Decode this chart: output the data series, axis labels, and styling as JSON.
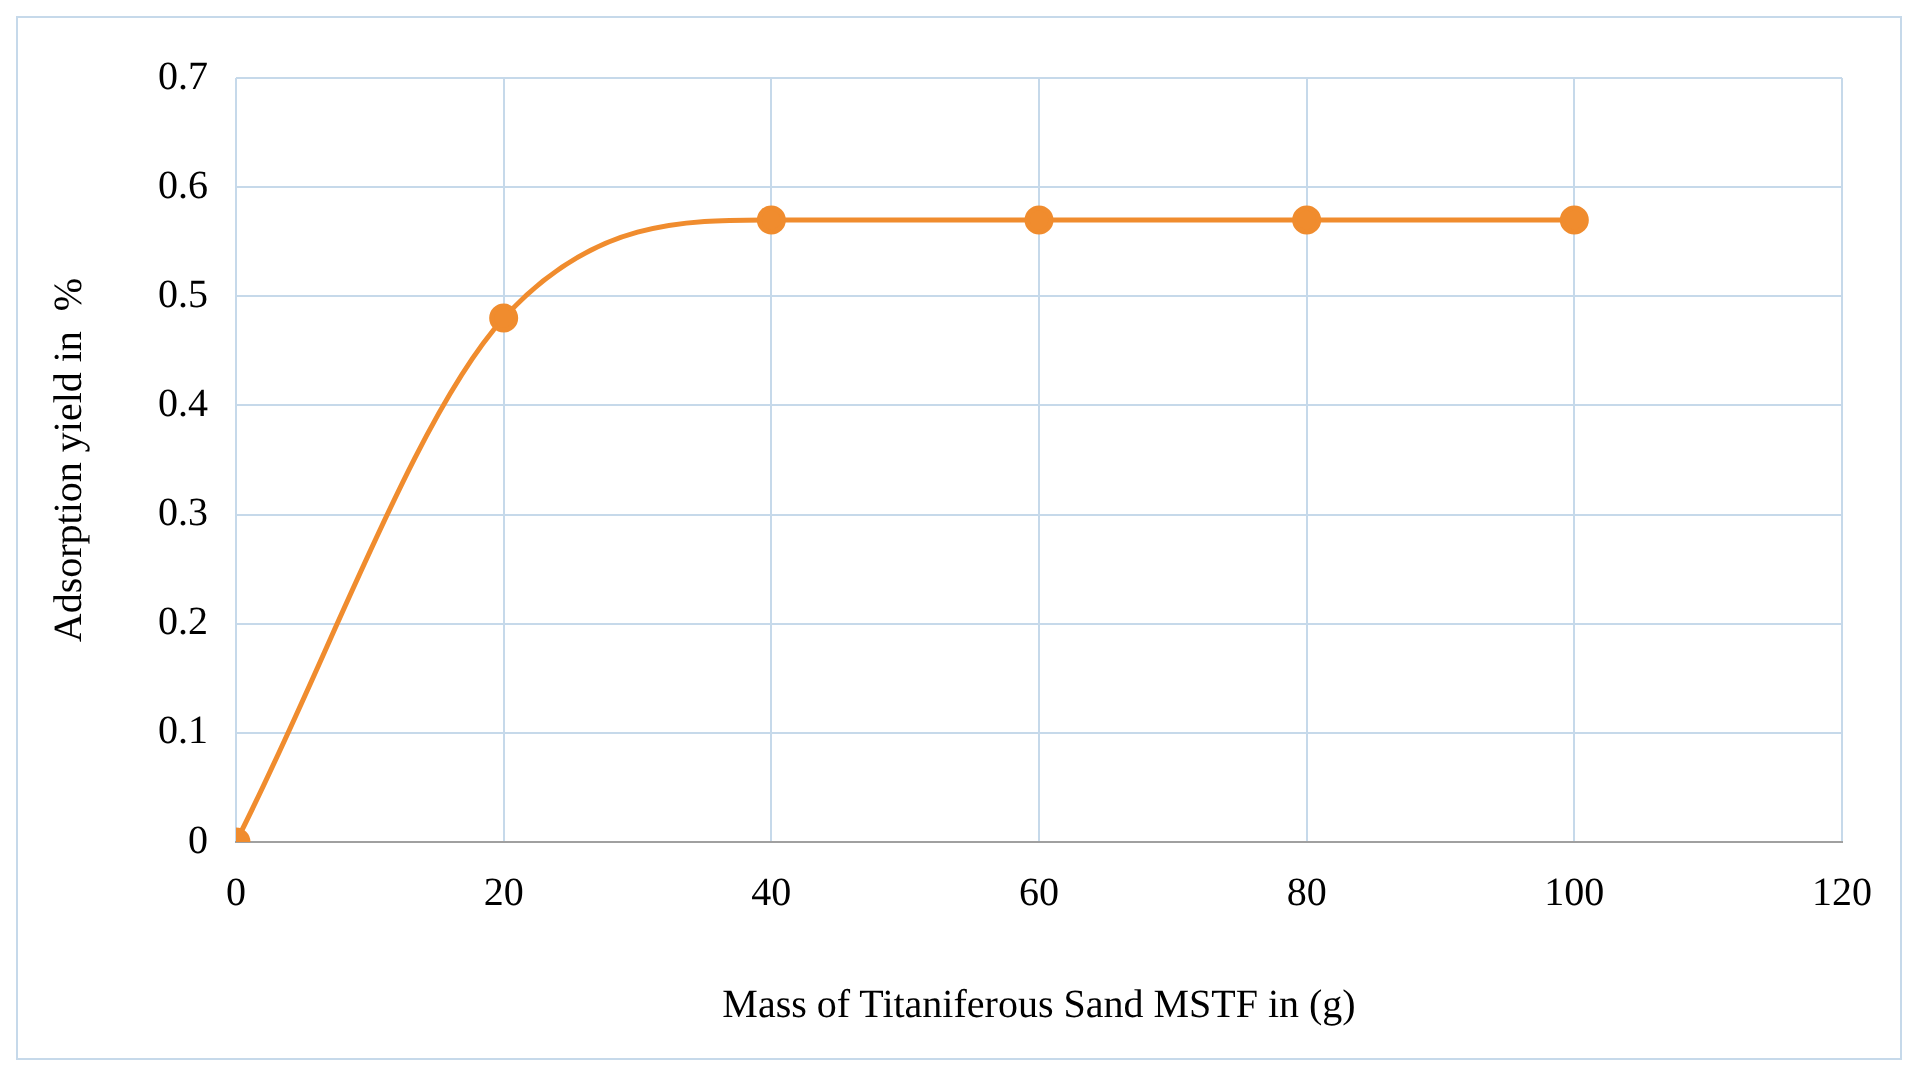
{
  "chart_data": {
    "type": "line",
    "xlabel": "Mass of Titaniferous Sand MSTF in (g)",
    "ylabel": "Adsorption yield in  %",
    "x": [
      0,
      20,
      40,
      60,
      80,
      100
    ],
    "series": [
      {
        "color": "#f08c2e",
        "values": [
          0,
          0.48,
          0.57,
          0.57,
          0.57,
          0.57
        ]
      }
    ],
    "xlim": [
      0,
      120
    ],
    "xticks": [
      0,
      20,
      40,
      60,
      80,
      100,
      120
    ],
    "ylim": [
      0,
      0.7
    ],
    "yticks": [
      0,
      0.1,
      0.2,
      0.3,
      0.4,
      0.5,
      0.6,
      0.7
    ],
    "grid": true,
    "legend": false,
    "marker": "circle",
    "line_style": "solid"
  }
}
